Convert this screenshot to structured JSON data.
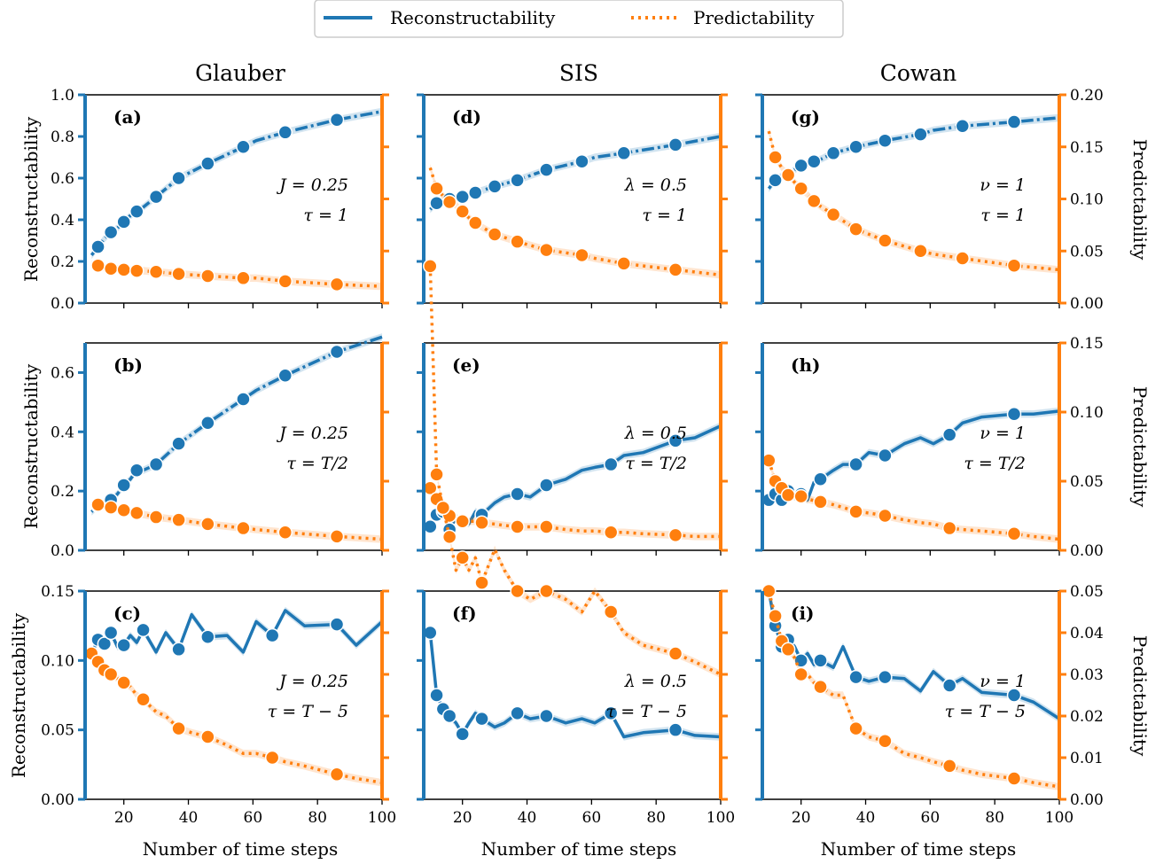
{
  "legend": {
    "placement": "top-center",
    "entries": [
      {
        "label": "Reconstructability",
        "style": "solid",
        "color": "#1f77b4"
      },
      {
        "label": "Predictability",
        "style": "dotted",
        "color": "#ff7f0e"
      }
    ]
  },
  "column_titles": [
    "Glauber",
    "SIS",
    "Cowan"
  ],
  "row_label_left": "Reconstructability",
  "row_label_right": "Predictability",
  "xlabel": "Number of time steps",
  "x_ticks": [
    "20",
    "40",
    "60",
    "80",
    "100"
  ],
  "colors": {
    "reconstructability": "#1f77b4",
    "predictability": "#ff7f0e"
  },
  "rows": [
    {
      "left_ylim": [
        0,
        1.0
      ],
      "left_ticks": [
        "0.0",
        "0.2",
        "0.4",
        "0.6",
        "0.8",
        "1.0"
      ],
      "right_ylim": [
        0,
        0.2
      ],
      "right_ticks": [
        "0.00",
        "0.05",
        "0.10",
        "0.15",
        "0.20"
      ]
    },
    {
      "left_ylim": [
        0,
        0.7
      ],
      "left_ticks": [
        "0.0",
        "0.2",
        "0.4",
        "0.6"
      ],
      "right_ylim": [
        0,
        0.15
      ],
      "right_ticks": [
        "0.00",
        "0.05",
        "0.10",
        "0.15"
      ]
    },
    {
      "left_ylim": [
        0,
        0.15
      ],
      "left_ticks": [
        "0.00",
        "0.05",
        "0.10",
        "0.15"
      ],
      "right_ylim": [
        0,
        0.05
      ],
      "right_ticks": [
        "0.00",
        "0.01",
        "0.02",
        "0.03",
        "0.04",
        "0.05"
      ]
    }
  ],
  "chart_data": [
    {
      "type": "line",
      "panel": "(a)",
      "row": 0,
      "col": 0,
      "params": [
        "J = 0.25",
        "τ = 1"
      ],
      "xlim": [
        8,
        100
      ],
      "series": [
        {
          "name": "Reconstructability",
          "axis": "left",
          "x": [
            10,
            12,
            14,
            16,
            18,
            20,
            22,
            24,
            26,
            30,
            37,
            46,
            57,
            61,
            70,
            86,
            100
          ],
          "y": [
            0.23,
            0.27,
            0.31,
            0.34,
            0.36,
            0.39,
            0.42,
            0.44,
            0.46,
            0.51,
            0.6,
            0.67,
            0.75,
            0.78,
            0.82,
            0.88,
            0.92
          ]
        },
        {
          "name": "Predictability",
          "axis": "right",
          "x": [
            10,
            12,
            14,
            16,
            18,
            20,
            22,
            24,
            26,
            30,
            37,
            46,
            57,
            61,
            70,
            86,
            100
          ],
          "y": [
            0.037,
            0.036,
            0.034,
            0.033,
            0.033,
            0.032,
            0.032,
            0.031,
            0.031,
            0.03,
            0.028,
            0.026,
            0.024,
            0.024,
            0.021,
            0.018,
            0.016
          ]
        }
      ]
    },
    {
      "type": "line",
      "panel": "(b)",
      "row": 1,
      "col": 0,
      "params": [
        "J = 0.25",
        "τ = T/2"
      ],
      "xlim": [
        8,
        100
      ],
      "series": [
        {
          "name": "Reconstructability",
          "axis": "left",
          "x": [
            10,
            12,
            14,
            16,
            18,
            20,
            22,
            24,
            26,
            30,
            37,
            46,
            57,
            61,
            70,
            86,
            100
          ],
          "y": [
            0.13,
            0.15,
            0.16,
            0.17,
            0.19,
            0.22,
            0.24,
            0.27,
            0.27,
            0.29,
            0.36,
            0.43,
            0.51,
            0.54,
            0.59,
            0.67,
            0.72
          ]
        },
        {
          "name": "Predictability",
          "axis": "right",
          "x": [
            10,
            12,
            14,
            16,
            18,
            20,
            22,
            24,
            26,
            30,
            37,
            46,
            57,
            61,
            70,
            86,
            100
          ],
          "y": [
            0.033,
            0.033,
            0.032,
            0.031,
            0.03,
            0.029,
            0.028,
            0.027,
            0.026,
            0.024,
            0.022,
            0.019,
            0.016,
            0.015,
            0.013,
            0.01,
            0.008
          ]
        }
      ]
    },
    {
      "type": "line",
      "panel": "(c)",
      "row": 2,
      "col": 0,
      "params": [
        "J = 0.25",
        "τ = T − 5"
      ],
      "xlim": [
        8,
        100
      ],
      "series": [
        {
          "name": "Reconstructability",
          "axis": "left",
          "x": [
            10,
            12,
            14,
            16,
            18,
            20,
            22,
            24,
            26,
            30,
            33,
            37,
            41,
            46,
            52,
            57,
            61,
            66,
            70,
            76,
            86,
            92,
            100
          ],
          "y": [
            0.105,
            0.115,
            0.112,
            0.12,
            0.11,
            0.111,
            0.118,
            0.113,
            0.122,
            0.106,
            0.12,
            0.108,
            0.133,
            0.117,
            0.118,
            0.106,
            0.128,
            0.118,
            0.136,
            0.125,
            0.126,
            0.111,
            0.128
          ]
        },
        {
          "name": "Predictability",
          "axis": "right",
          "x": [
            10,
            12,
            14,
            16,
            18,
            20,
            22,
            24,
            26,
            30,
            33,
            37,
            41,
            46,
            52,
            57,
            61,
            66,
            70,
            76,
            86,
            92,
            100
          ],
          "y": [
            0.035,
            0.033,
            0.031,
            0.03,
            0.029,
            0.028,
            0.027,
            0.025,
            0.024,
            0.021,
            0.02,
            0.017,
            0.016,
            0.015,
            0.013,
            0.011,
            0.011,
            0.01,
            0.009,
            0.008,
            0.006,
            0.005,
            0.004
          ]
        }
      ]
    },
    {
      "type": "line",
      "panel": "(d)",
      "row": 0,
      "col": 1,
      "params": [
        "λ = 0.5",
        "τ = 1"
      ],
      "xlim": [
        8,
        100
      ],
      "series": [
        {
          "name": "Reconstructability",
          "axis": "left",
          "x": [
            10,
            12,
            14,
            16,
            18,
            20,
            22,
            24,
            26,
            30,
            37,
            46,
            57,
            61,
            70,
            86,
            100
          ],
          "y": [
            0.45,
            0.48,
            0.49,
            0.5,
            0.5,
            0.51,
            0.52,
            0.53,
            0.54,
            0.56,
            0.59,
            0.64,
            0.68,
            0.7,
            0.72,
            0.76,
            0.8
          ]
        },
        {
          "name": "Predictability",
          "axis": "right",
          "x": [
            10,
            12,
            14,
            16,
            18,
            20,
            22,
            24,
            26,
            30,
            37,
            46,
            57,
            61,
            70,
            86,
            100
          ],
          "y": [
            0.13,
            0.11,
            0.103,
            0.097,
            0.094,
            0.088,
            0.082,
            0.077,
            0.073,
            0.066,
            0.059,
            0.051,
            0.046,
            0.043,
            0.038,
            0.032,
            0.027
          ]
        }
      ]
    },
    {
      "type": "line",
      "panel": "(e)",
      "row": 1,
      "col": 1,
      "params": [
        "λ = 0.5",
        "τ = T/2"
      ],
      "xlim": [
        8,
        100
      ],
      "series": [
        {
          "name": "Reconstructability",
          "axis": "left",
          "x": [
            10,
            12,
            14,
            16,
            18,
            20,
            22,
            24,
            26,
            30,
            33,
            37,
            41,
            46,
            52,
            57,
            61,
            66,
            70,
            76,
            86,
            92,
            100
          ],
          "y": [
            0.08,
            0.12,
            0.13,
            0.07,
            0.11,
            0.1,
            0.09,
            0.13,
            0.12,
            0.16,
            0.18,
            0.19,
            0.18,
            0.22,
            0.24,
            0.27,
            0.28,
            0.29,
            0.32,
            0.33,
            0.37,
            0.38,
            0.42
          ]
        },
        {
          "name": "Predictability",
          "axis": "right",
          "x": [
            10,
            12,
            14,
            16,
            18,
            20,
            22,
            24,
            26,
            30,
            33,
            37,
            41,
            46,
            52,
            57,
            61,
            66,
            70,
            76,
            86,
            92,
            100
          ],
          "y": [
            0.045,
            0.037,
            0.03,
            0.025,
            0.022,
            0.021,
            0.021,
            0.021,
            0.02,
            0.019,
            0.018,
            0.017,
            0.017,
            0.017,
            0.015,
            0.014,
            0.014,
            0.013,
            0.013,
            0.012,
            0.011,
            0.01,
            0.01
          ]
        }
      ]
    },
    {
      "type": "line",
      "panel": "(f)",
      "row": 2,
      "col": 1,
      "params": [
        "λ = 0.5",
        "τ = T − 5"
      ],
      "xlim": [
        8,
        100
      ],
      "series": [
        {
          "name": "Reconstructability",
          "axis": "left",
          "x": [
            10,
            12,
            14,
            16,
            18,
            20,
            22,
            24,
            26,
            30,
            33,
            37,
            41,
            46,
            52,
            57,
            61,
            66,
            70,
            76,
            86,
            92,
            100
          ],
          "y": [
            0.12,
            0.075,
            0.065,
            0.06,
            0.055,
            0.047,
            0.055,
            0.062,
            0.058,
            0.052,
            0.055,
            0.062,
            0.058,
            0.06,
            0.055,
            0.058,
            0.055,
            0.062,
            0.045,
            0.048,
            0.05,
            0.046,
            0.045
          ]
        },
        {
          "name": "Predictability",
          "axis": "right",
          "x": [
            10,
            12,
            14,
            16,
            18,
            20,
            22,
            24,
            26,
            30,
            33,
            37,
            41,
            46,
            52,
            57,
            61,
            66,
            70,
            76,
            86,
            92,
            100
          ],
          "y": [
            0.128,
            0.078,
            0.07,
            0.063,
            0.055,
            0.058,
            0.055,
            0.058,
            0.052,
            0.06,
            0.055,
            0.05,
            0.048,
            0.05,
            0.048,
            0.045,
            0.05,
            0.045,
            0.04,
            0.037,
            0.035,
            0.033,
            0.03
          ]
        }
      ]
    },
    {
      "type": "line",
      "panel": "(g)",
      "row": 0,
      "col": 2,
      "params": [
        "ν = 1",
        "τ = 1"
      ],
      "xlim": [
        8,
        100
      ],
      "series": [
        {
          "name": "Reconstructability",
          "axis": "left",
          "x": [
            10,
            12,
            14,
            16,
            18,
            20,
            22,
            24,
            26,
            30,
            37,
            46,
            57,
            61,
            70,
            86,
            100
          ],
          "y": [
            0.55,
            0.59,
            0.61,
            0.62,
            0.64,
            0.66,
            0.67,
            0.68,
            0.69,
            0.72,
            0.75,
            0.78,
            0.81,
            0.83,
            0.85,
            0.87,
            0.89
          ]
        },
        {
          "name": "Predictability",
          "axis": "right",
          "x": [
            10,
            12,
            14,
            16,
            18,
            20,
            22,
            24,
            26,
            30,
            37,
            46,
            57,
            61,
            70,
            86,
            100
          ],
          "y": [
            0.165,
            0.14,
            0.13,
            0.123,
            0.116,
            0.11,
            0.104,
            0.098,
            0.093,
            0.085,
            0.071,
            0.06,
            0.05,
            0.047,
            0.043,
            0.036,
            0.032
          ]
        }
      ]
    },
    {
      "type": "line",
      "panel": "(h)",
      "row": 1,
      "col": 2,
      "params": [
        "ν = 1",
        "τ = T/2"
      ],
      "xlim": [
        8,
        100
      ],
      "series": [
        {
          "name": "Reconstructability",
          "axis": "left",
          "x": [
            10,
            12,
            14,
            16,
            18,
            20,
            22,
            24,
            26,
            30,
            33,
            37,
            41,
            46,
            52,
            57,
            61,
            66,
            70,
            76,
            86,
            92,
            100
          ],
          "y": [
            0.17,
            0.19,
            0.17,
            0.2,
            0.18,
            0.19,
            0.17,
            0.23,
            0.24,
            0.27,
            0.29,
            0.29,
            0.33,
            0.32,
            0.36,
            0.38,
            0.36,
            0.39,
            0.43,
            0.45,
            0.46,
            0.46,
            0.47
          ]
        },
        {
          "name": "Predictability",
          "axis": "right",
          "x": [
            10,
            12,
            14,
            16,
            18,
            20,
            22,
            24,
            26,
            30,
            33,
            37,
            41,
            46,
            52,
            57,
            61,
            66,
            70,
            76,
            86,
            92,
            100
          ],
          "y": [
            0.065,
            0.05,
            0.045,
            0.04,
            0.039,
            0.039,
            0.037,
            0.036,
            0.035,
            0.033,
            0.031,
            0.028,
            0.027,
            0.025,
            0.022,
            0.02,
            0.019,
            0.016,
            0.015,
            0.014,
            0.012,
            0.01,
            0.008
          ]
        }
      ]
    },
    {
      "type": "line",
      "panel": "(i)",
      "row": 2,
      "col": 2,
      "params": [
        "ν = 1",
        "τ = T − 5"
      ],
      "xlim": [
        8,
        100
      ],
      "series": [
        {
          "name": "Reconstructability",
          "axis": "left",
          "x": [
            10,
            12,
            14,
            16,
            18,
            20,
            22,
            24,
            26,
            30,
            33,
            37,
            41,
            46,
            52,
            57,
            61,
            66,
            70,
            76,
            86,
            92,
            100
          ],
          "y": [
            0.15,
            0.125,
            0.11,
            0.115,
            0.11,
            0.1,
            0.105,
            0.097,
            0.1,
            0.095,
            0.11,
            0.088,
            0.085,
            0.088,
            0.087,
            0.078,
            0.092,
            0.082,
            0.087,
            0.077,
            0.075,
            0.07,
            0.058
          ]
        },
        {
          "name": "Predictability",
          "axis": "right",
          "x": [
            10,
            12,
            14,
            16,
            18,
            20,
            22,
            24,
            26,
            30,
            33,
            37,
            41,
            46,
            52,
            57,
            61,
            66,
            70,
            76,
            86,
            92,
            100
          ],
          "y": [
            0.05,
            0.044,
            0.038,
            0.036,
            0.034,
            0.03,
            0.03,
            0.028,
            0.027,
            0.025,
            0.025,
            0.017,
            0.015,
            0.014,
            0.011,
            0.01,
            0.009,
            0.008,
            0.007,
            0.006,
            0.005,
            0.004,
            0.003
          ]
        }
      ]
    }
  ]
}
